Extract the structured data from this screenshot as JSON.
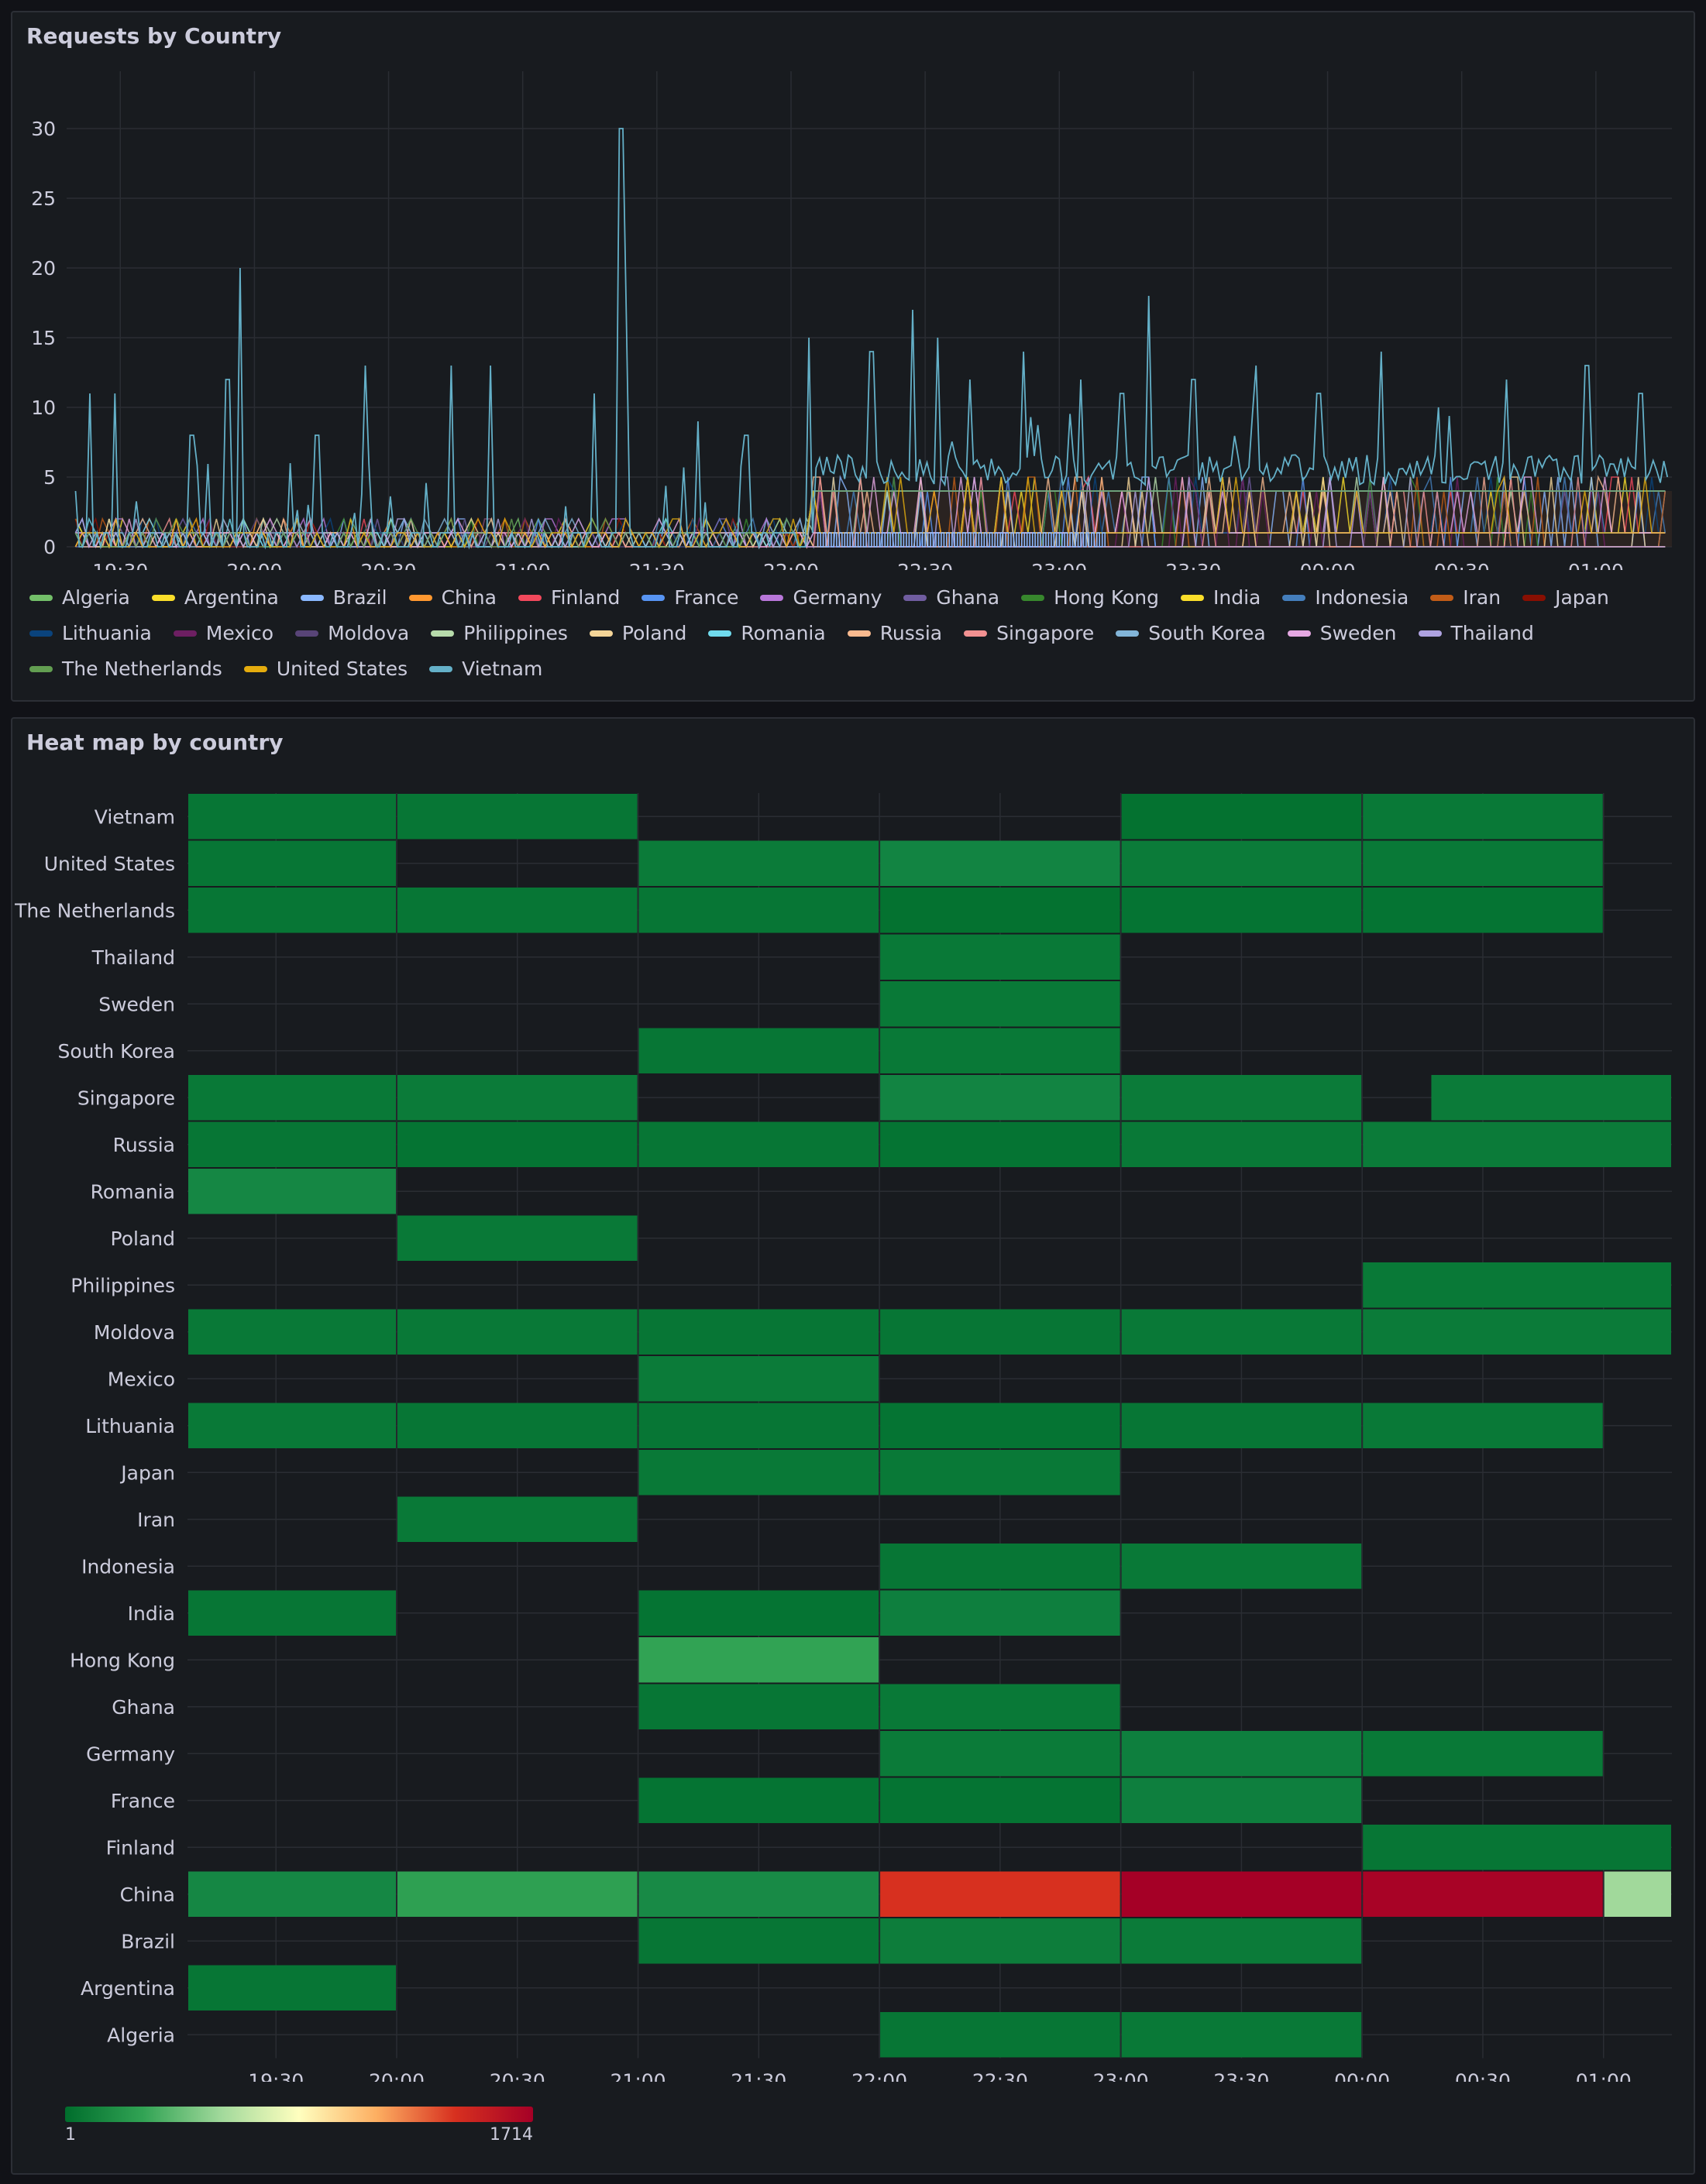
{
  "panels": {
    "timeseries_title": "Requests by Country",
    "heatmap_title": "Heat map by country"
  },
  "chart_data": [
    {
      "type": "line",
      "title": "Requests by Country",
      "x_ticks": [
        "19:30",
        "20:00",
        "20:30",
        "21:00",
        "21:30",
        "22:00",
        "22:30",
        "23:00",
        "23:30",
        "00:00",
        "00:30",
        "01:00"
      ],
      "x_range": [
        "19:18",
        "01:17"
      ],
      "ylim": [
        0,
        33
      ],
      "y_ticks": [
        0,
        5,
        10,
        15,
        20,
        25,
        30
      ],
      "grid": true,
      "legend_placement": "bottom",
      "series": [
        {
          "name": "Algeria",
          "color": "#73bf69"
        },
        {
          "name": "Argentina",
          "color": "#fade2a"
        },
        {
          "name": "Brazil",
          "color": "#8ab8ff"
        },
        {
          "name": "China",
          "color": "#ff9830"
        },
        {
          "name": "Finland",
          "color": "#f2495c"
        },
        {
          "name": "France",
          "color": "#5794f2"
        },
        {
          "name": "Germany",
          "color": "#b877d9"
        },
        {
          "name": "Ghana",
          "color": "#705da0"
        },
        {
          "name": "Hong Kong",
          "color": "#37872d"
        },
        {
          "name": "India",
          "color": "#fade2a"
        },
        {
          "name": "Indonesia",
          "color": "#447ebc"
        },
        {
          "name": "Iran",
          "color": "#c15c17"
        },
        {
          "name": "Japan",
          "color": "#890f02"
        },
        {
          "name": "Lithuania",
          "color": "#0a437c"
        },
        {
          "name": "Mexico",
          "color": "#6d1f62"
        },
        {
          "name": "Moldova",
          "color": "#584477"
        },
        {
          "name": "Philippines",
          "color": "#b7dbab"
        },
        {
          "name": "Poland",
          "color": "#f4d598"
        },
        {
          "name": "Romania",
          "color": "#70dbed"
        },
        {
          "name": "Russia",
          "color": "#f9ba8f"
        },
        {
          "name": "Singapore",
          "color": "#f29191"
        },
        {
          "name": "South Korea",
          "color": "#82b5d8"
        },
        {
          "name": "Sweden",
          "color": "#e5a8e2"
        },
        {
          "name": "Thailand",
          "color": "#aea2e0"
        },
        {
          "name": "The Netherlands",
          "color": "#629e51"
        },
        {
          "name": "United States",
          "color": "#e5ac0e"
        },
        {
          "name": "Vietnam",
          "color": "#64b0c8"
        }
      ],
      "vietnam_peaks": [
        {
          "t": "19:20",
          "v": 4
        },
        {
          "t": "19:23",
          "v": 11
        },
        {
          "t": "19:29",
          "v": 11
        },
        {
          "t": "19:46",
          "v": 8
        },
        {
          "t": "19:54",
          "v": 12
        },
        {
          "t": "19:57",
          "v": 20
        },
        {
          "t": "20:08",
          "v": 6
        },
        {
          "t": "20:14",
          "v": 8
        },
        {
          "t": "20:25",
          "v": 13
        },
        {
          "t": "20:44",
          "v": 13
        },
        {
          "t": "20:53",
          "v": 13
        },
        {
          "t": "21:16",
          "v": 11
        },
        {
          "t": "21:22",
          "v": 30
        },
        {
          "t": "21:23",
          "v": 16
        },
        {
          "t": "21:39",
          "v": 9
        },
        {
          "t": "21:50",
          "v": 8
        },
        {
          "t": "22:04",
          "v": 15
        },
        {
          "t": "22:18",
          "v": 14
        },
        {
          "t": "22:27",
          "v": 17
        },
        {
          "t": "22:33",
          "v": 15
        },
        {
          "t": "22:40",
          "v": 12
        },
        {
          "t": "22:52",
          "v": 14
        },
        {
          "t": "23:05",
          "v": 12
        },
        {
          "t": "23:14",
          "v": 11
        },
        {
          "t": "23:20",
          "v": 18
        },
        {
          "t": "23:30",
          "v": 12
        },
        {
          "t": "23:44",
          "v": 13
        },
        {
          "t": "23:58",
          "v": 11
        },
        {
          "t": "00:12",
          "v": 14
        },
        {
          "t": "00:25",
          "v": 10
        },
        {
          "t": "00:40",
          "v": 12
        },
        {
          "t": "00:58",
          "v": 13
        },
        {
          "t": "01:10",
          "v": 11
        }
      ],
      "vietnam_baseline_after_22:05": 5,
      "other_series_baseline_after_22:05": 4
    },
    {
      "type": "heatmap",
      "title": "Heat map by country",
      "x_ticks": [
        "19:30",
        "20:00",
        "20:30",
        "21:00",
        "21:30",
        "22:00",
        "22:30",
        "23:00",
        "23:30",
        "00:00",
        "00:30",
        "01:00"
      ],
      "x_range": [
        "19:08",
        "01:17"
      ],
      "y_categories": [
        "Vietnam",
        "United States",
        "The Netherlands",
        "Thailand",
        "Sweden",
        "South Korea",
        "Singapore",
        "Russia",
        "Romania",
        "Poland",
        "Philippines",
        "Moldova",
        "Mexico",
        "Lithuania",
        "Japan",
        "Iran",
        "Indonesia",
        "India",
        "Hong Kong",
        "Ghana",
        "Germany",
        "France",
        "Finland",
        "China",
        "Brazil",
        "Argentina",
        "Algeria"
      ],
      "color_scale": {
        "min": 1,
        "max": 1714,
        "min_label": "1",
        "max_label": "1714"
      },
      "value_note": "color level 0-1 along the green-to-red scale",
      "cells": {
        "Vietnam": [
          [
            "19:08",
            "20:00",
            0.04
          ],
          [
            "20:00",
            "21:00",
            0.04
          ],
          [
            "23:00",
            "00:00",
            0.02
          ],
          [
            "00:00",
            "01:00",
            0.05
          ]
        ],
        "United States": [
          [
            "19:08",
            "20:00",
            0.04
          ],
          [
            "21:00",
            "22:00",
            0.06
          ],
          [
            "22:00",
            "23:00",
            0.1
          ],
          [
            "23:00",
            "00:00",
            0.06
          ],
          [
            "00:00",
            "01:00",
            0.05
          ]
        ],
        "The Netherlands": [
          [
            "19:08",
            "20:00",
            0.04
          ],
          [
            "20:00",
            "21:00",
            0.04
          ],
          [
            "21:00",
            "22:00",
            0.04
          ],
          [
            "22:00",
            "23:00",
            0.02
          ],
          [
            "23:00",
            "00:00",
            0.03
          ],
          [
            "00:00",
            "01:00",
            0.03
          ]
        ],
        "Thailand": [
          [
            "22:00",
            "23:00",
            0.05
          ]
        ],
        "Sweden": [
          [
            "22:00",
            "23:00",
            0.05
          ]
        ],
        "South Korea": [
          [
            "21:00",
            "22:00",
            0.04
          ],
          [
            "22:00",
            "23:00",
            0.05
          ]
        ],
        "Singapore": [
          [
            "19:08",
            "20:00",
            0.05
          ],
          [
            "20:00",
            "21:00",
            0.06
          ],
          [
            "22:00",
            "23:00",
            0.1
          ],
          [
            "23:00",
            "00:00",
            0.06
          ],
          [
            "00:17",
            "01:17",
            0.06
          ]
        ],
        "Russia": [
          [
            "19:08",
            "20:00",
            0.04
          ],
          [
            "20:00",
            "21:00",
            0.03
          ],
          [
            "21:00",
            "22:00",
            0.04
          ],
          [
            "22:00",
            "23:00",
            0.03
          ],
          [
            "23:00",
            "00:00",
            0.05
          ],
          [
            "00:00",
            "01:17",
            0.06
          ]
        ],
        "Romania": [
          [
            "19:08",
            "20:00",
            0.12
          ]
        ],
        "Poland": [
          [
            "20:00",
            "21:00",
            0.05
          ]
        ],
        "Philippines": [
          [
            "00:00",
            "01:17",
            0.05
          ]
        ],
        "Moldova": [
          [
            "19:08",
            "20:00",
            0.05
          ],
          [
            "20:00",
            "21:00",
            0.05
          ],
          [
            "21:00",
            "22:00",
            0.04
          ],
          [
            "22:00",
            "23:00",
            0.04
          ],
          [
            "23:00",
            "00:00",
            0.05
          ],
          [
            "00:00",
            "01:17",
            0.06
          ]
        ],
        "Mexico": [
          [
            "21:00",
            "22:00",
            0.06
          ]
        ],
        "Lithuania": [
          [
            "19:08",
            "20:00",
            0.05
          ],
          [
            "20:00",
            "21:00",
            0.04
          ],
          [
            "21:00",
            "22:00",
            0.04
          ],
          [
            "22:00",
            "23:00",
            0.03
          ],
          [
            "23:00",
            "00:00",
            0.04
          ],
          [
            "00:00",
            "01:00",
            0.05
          ]
        ],
        "Japan": [
          [
            "21:00",
            "22:00",
            0.05
          ],
          [
            "22:00",
            "23:00",
            0.05
          ]
        ],
        "Iran": [
          [
            "20:00",
            "21:00",
            0.05
          ]
        ],
        "Indonesia": [
          [
            "22:00",
            "23:00",
            0.04
          ],
          [
            "23:00",
            "00:00",
            0.05
          ]
        ],
        "India": [
          [
            "19:08",
            "20:00",
            0.04
          ],
          [
            "21:00",
            "22:00",
            0.03
          ],
          [
            "22:00",
            "23:00",
            0.08
          ]
        ],
        "Hong Kong": [
          [
            "21:00",
            "22:00",
            0.3
          ]
        ],
        "Ghana": [
          [
            "21:00",
            "22:00",
            0.04
          ],
          [
            "22:00",
            "23:00",
            0.05
          ]
        ],
        "Germany": [
          [
            "22:00",
            "23:00",
            0.06
          ],
          [
            "23:00",
            "00:00",
            0.08
          ],
          [
            "00:00",
            "01:00",
            0.05
          ]
        ],
        "France": [
          [
            "21:00",
            "22:00",
            0.03
          ],
          [
            "22:00",
            "23:00",
            0.03
          ],
          [
            "23:00",
            "00:00",
            0.08
          ]
        ],
        "Finland": [
          [
            "00:00",
            "01:17",
            0.04
          ]
        ],
        "China": [
          [
            "19:08",
            "20:00",
            0.12
          ],
          [
            "20:00",
            "21:00",
            0.28
          ],
          [
            "21:00",
            "22:00",
            0.14
          ],
          [
            "22:00",
            "23:00",
            0.84
          ],
          [
            "23:00",
            "00:00",
            1.0
          ],
          [
            "00:00",
            "01:00",
            0.99
          ],
          [
            "01:00",
            "01:17",
            0.42
          ]
        ],
        "Brazil": [
          [
            "21:00",
            "22:00",
            0.04
          ],
          [
            "22:00",
            "23:00",
            0.07
          ],
          [
            "23:00",
            "00:00",
            0.06
          ]
        ],
        "Argentina": [
          [
            "19:08",
            "20:00",
            0.04
          ]
        ],
        "Algeria": [
          [
            "22:00",
            "23:00",
            0.04
          ],
          [
            "23:00",
            "00:00",
            0.05
          ]
        ]
      }
    }
  ]
}
